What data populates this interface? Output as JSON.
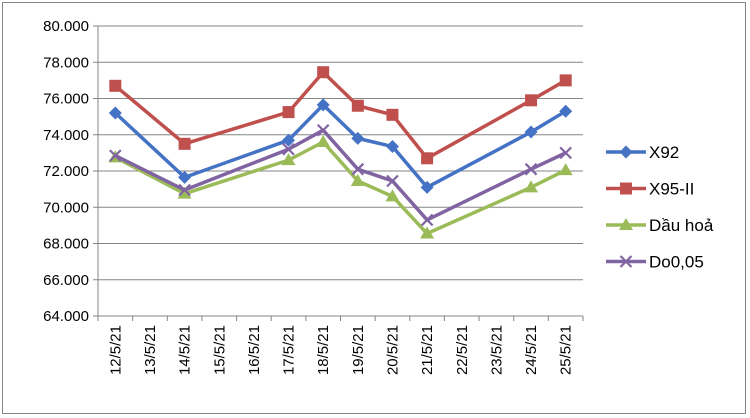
{
  "chart_data": {
    "type": "line",
    "title": "",
    "xlabel": "",
    "ylabel": "",
    "categories": [
      "12/5/21",
      "13/5/21",
      "14/5/21",
      "15/5/21",
      "16/5/21",
      "17/5/21",
      "18/5/21",
      "19/5/21",
      "20/5/21",
      "21/5/21",
      "22/5/21",
      "23/5/21",
      "24/5/21",
      "25/5/21"
    ],
    "ylim": [
      64000,
      80000
    ],
    "y_ticks": [
      "64.000",
      "66.000",
      "68.000",
      "70.000",
      "72.000",
      "74.000",
      "76.000",
      "78.000",
      "80.000"
    ],
    "grid": "horizontal",
    "legend_position": "right",
    "series": [
      {
        "name": "X92",
        "color": "#4472C4",
        "marker": "diamond",
        "values": [
          75200,
          null,
          71650,
          null,
          null,
          73700,
          75650,
          73800,
          73350,
          71100,
          null,
          null,
          74150,
          75300
        ]
      },
      {
        "name": "X95-II",
        "color": "#C0504D",
        "marker": "square",
        "values": [
          76700,
          null,
          73500,
          null,
          null,
          75250,
          77450,
          75600,
          75100,
          72700,
          null,
          null,
          75900,
          77000
        ]
      },
      {
        "name": "Dầu hoả",
        "color": "#9BBB59",
        "marker": "triangle",
        "values": [
          72750,
          null,
          70750,
          null,
          null,
          72600,
          73600,
          71450,
          70600,
          68550,
          null,
          null,
          71100,
          72050
        ]
      },
      {
        "name": "Do0,05",
        "color": "#8064A2",
        "marker": "x",
        "values": [
          72850,
          null,
          70950,
          null,
          null,
          73200,
          74250,
          72100,
          71450,
          69300,
          null,
          null,
          72100,
          73000
        ]
      }
    ]
  }
}
